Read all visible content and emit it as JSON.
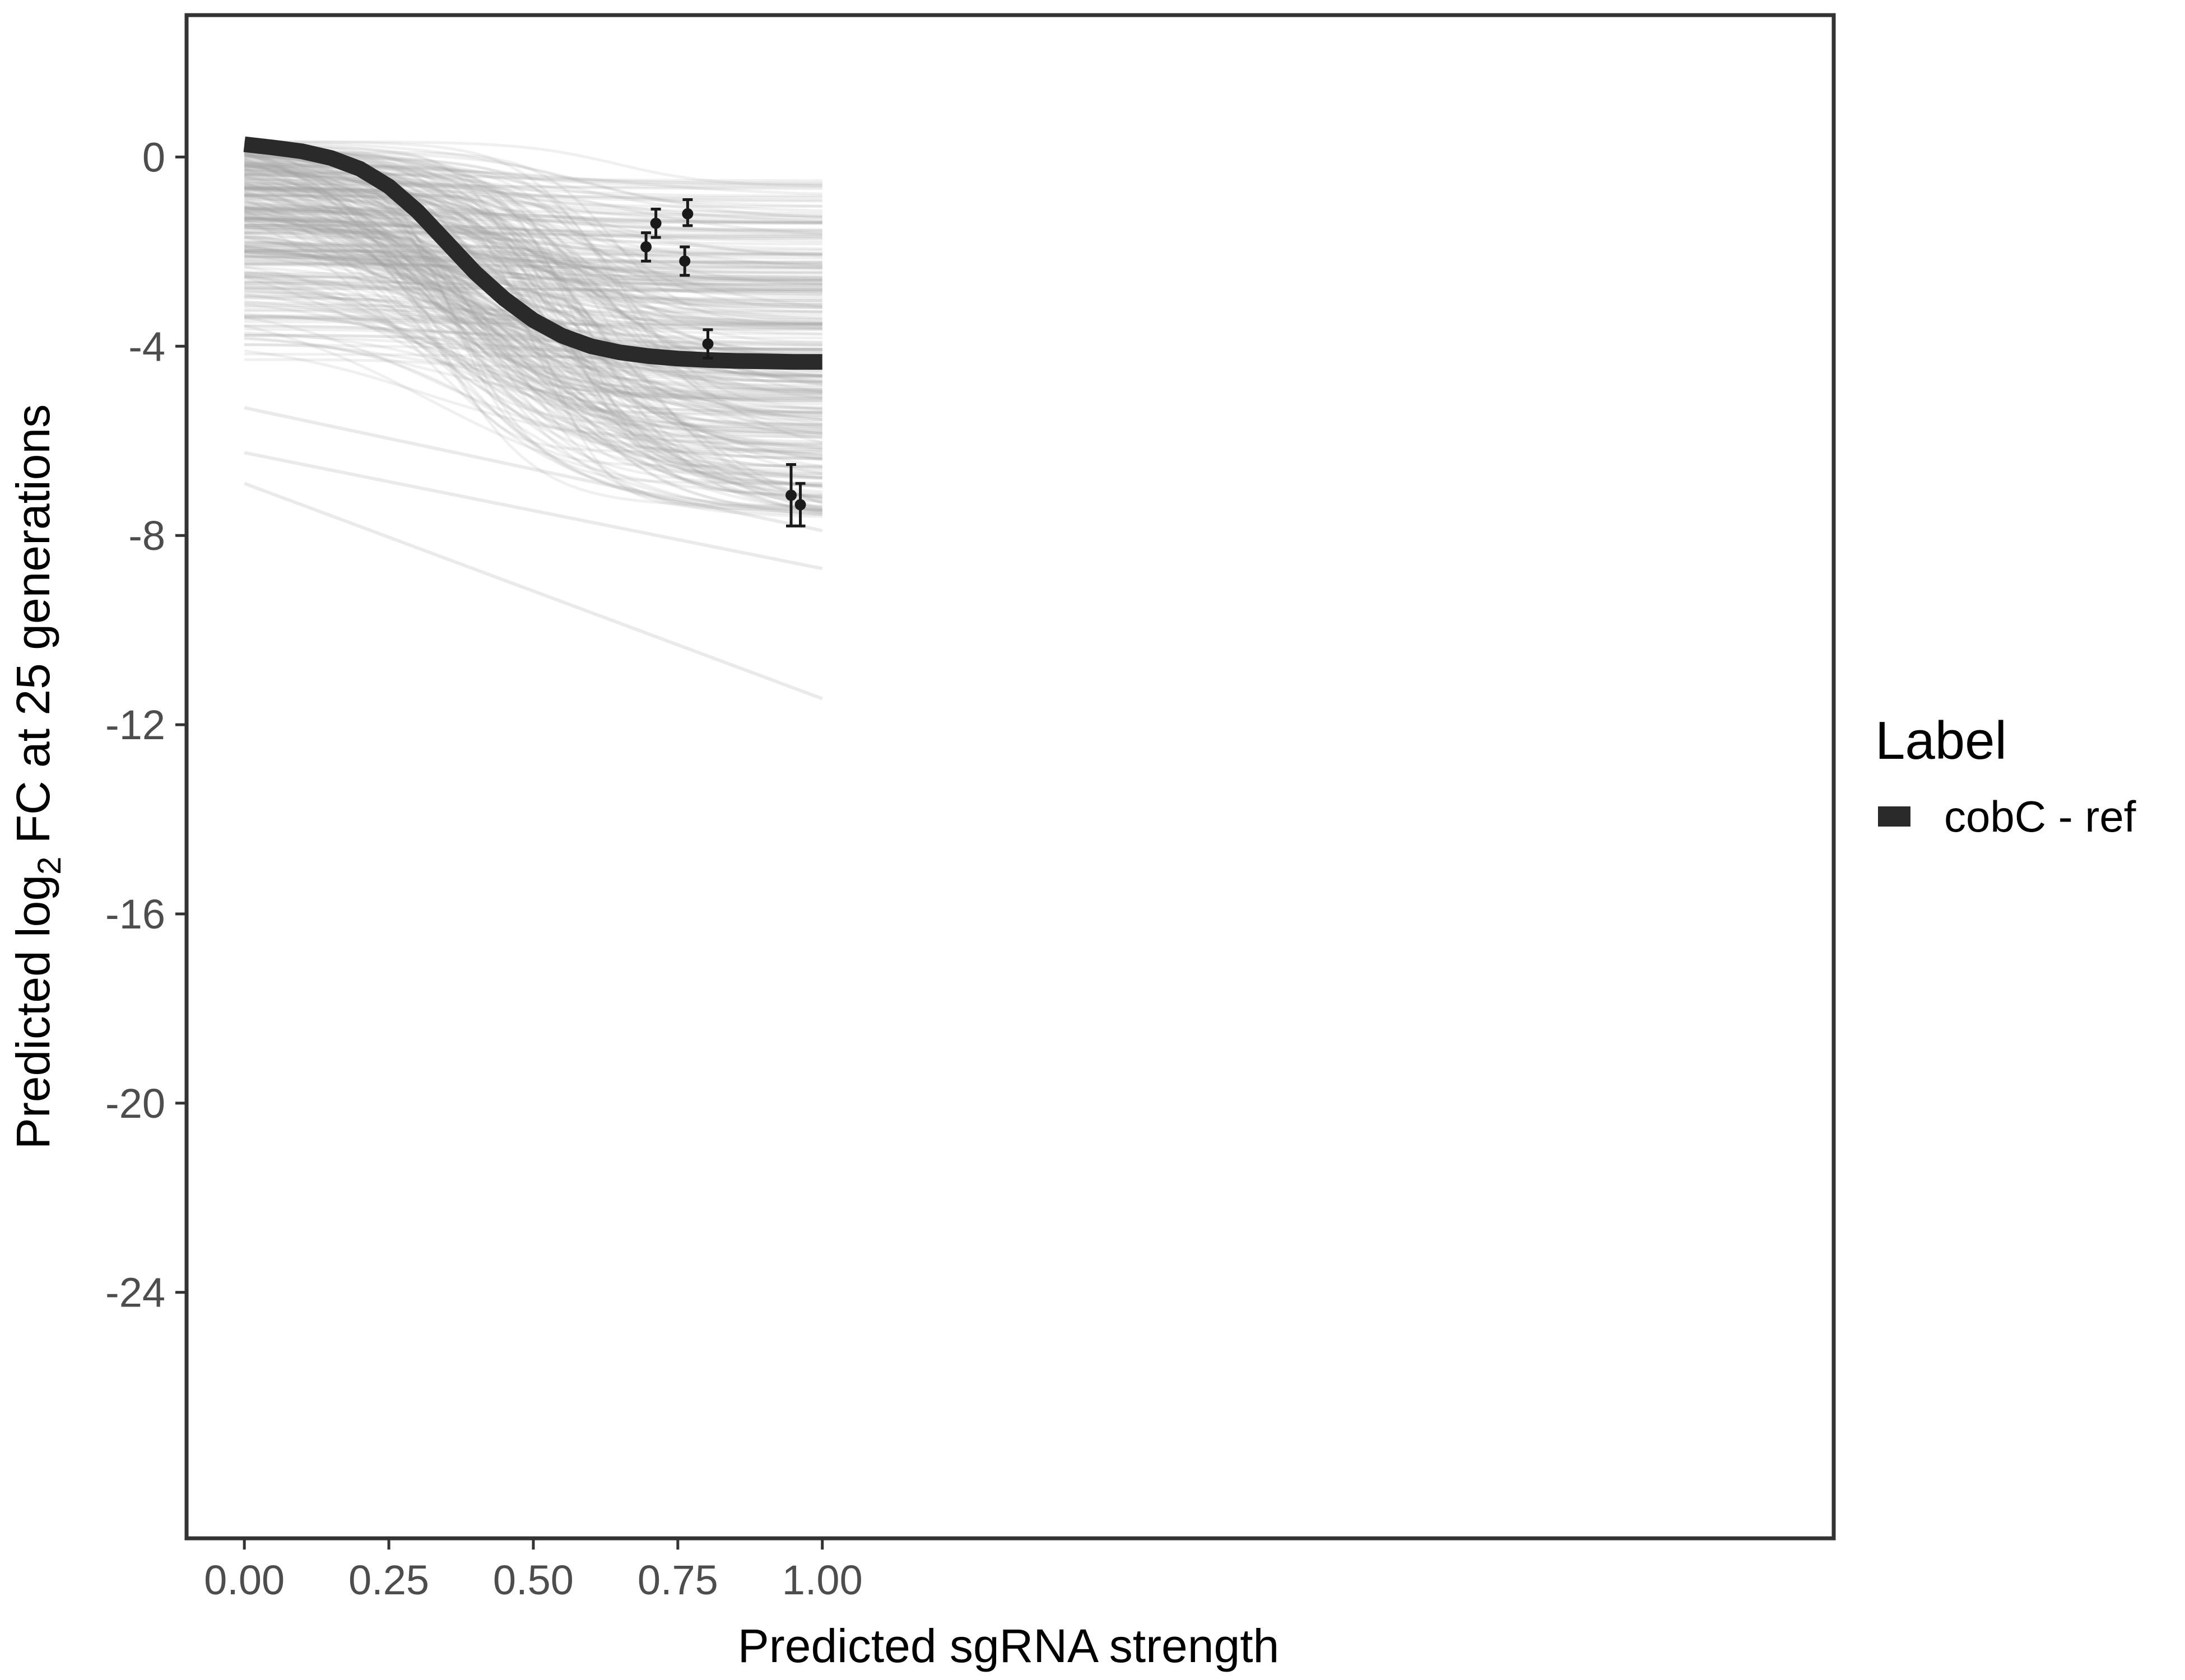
{
  "chart_data": {
    "type": "line",
    "title": "",
    "xlabel": "Predicted sgRNA strength",
    "ylabel_prefix": "Predicted  log",
    "ylabel_sub": "2",
    "ylabel_suffix": " FC at 25 generations",
    "xlim": [
      -0.1,
      2.75
    ],
    "ylim": [
      -29.2,
      3.0
    ],
    "x_ticks": [
      0.0,
      0.25,
      0.5,
      0.75,
      1.0
    ],
    "x_tick_labels": [
      "0.00",
      "0.25",
      "0.50",
      "0.75",
      "1.00"
    ],
    "y_ticks": [
      0,
      -4,
      -8,
      -12,
      -16,
      -20,
      -24
    ],
    "y_tick_labels": [
      "0",
      "-4",
      "-8",
      "-12",
      "-16",
      "-20",
      "-24"
    ],
    "grid": false,
    "legend": {
      "title": "Label",
      "position": "right",
      "entries": [
        {
          "name": "cobC - ref",
          "color": "#2a2a2a"
        }
      ]
    },
    "series": [
      {
        "name": "cobC - ref",
        "color": "#2a2a2a",
        "x": [
          0.0,
          0.05,
          0.1,
          0.15,
          0.2,
          0.25,
          0.3,
          0.35,
          0.4,
          0.45,
          0.5,
          0.55,
          0.6,
          0.65,
          0.7,
          0.75,
          0.8,
          0.85,
          0.9,
          0.95,
          1.0
        ],
        "y": [
          0.27,
          0.2,
          0.12,
          -0.02,
          -0.25,
          -0.62,
          -1.15,
          -1.8,
          -2.45,
          -3.0,
          -3.45,
          -3.78,
          -4.0,
          -4.13,
          -4.21,
          -4.26,
          -4.29,
          -4.31,
          -4.32,
          -4.33,
          -4.33
        ]
      }
    ],
    "points": [
      {
        "x": 0.695,
        "y": -1.9,
        "ymin": -2.2,
        "ymax": -1.6
      },
      {
        "x": 0.712,
        "y": -1.4,
        "ymin": -1.7,
        "ymax": -1.1
      },
      {
        "x": 0.762,
        "y": -2.2,
        "ymin": -2.5,
        "ymax": -1.9
      },
      {
        "x": 0.767,
        "y": -1.2,
        "ymin": -1.45,
        "ymax": -0.9
      },
      {
        "x": 0.802,
        "y": -3.95,
        "ymin": -4.25,
        "ymax": -3.65
      },
      {
        "x": 0.946,
        "y": -7.15,
        "ymin": -7.8,
        "ymax": -6.5
      },
      {
        "x": 0.962,
        "y": -7.35,
        "ymin": -7.8,
        "ymax": -6.9
      }
    ],
    "posterior_draws": {
      "color": "#a0a0a0",
      "count": 320,
      "start_range": [
        -4.4,
        0.35
      ],
      "end_range": [
        -7.6,
        -0.5
      ],
      "outliers": [
        {
          "y_start": -6.9,
          "y_end": -11.45
        },
        {
          "y_start": -6.25,
          "y_end": -8.7
        },
        {
          "y_start": -5.3,
          "y_end": -7.9
        }
      ]
    }
  }
}
